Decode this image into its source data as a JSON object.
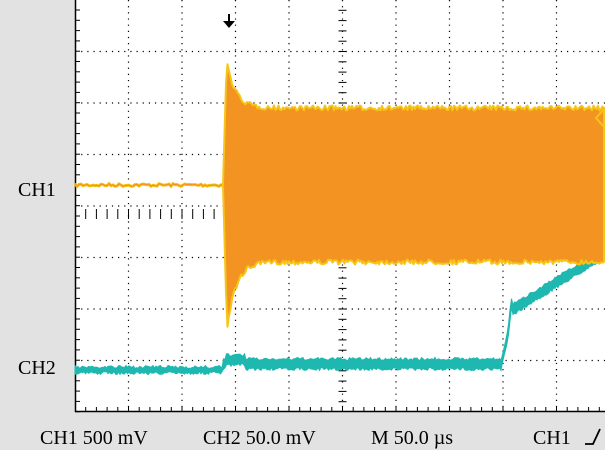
{
  "channels": [
    {
      "label": "CH1",
      "color": "#f39321",
      "edge_color": "#f5c518"
    },
    {
      "label": "CH2",
      "color": "#1fb8b0"
    }
  ],
  "status_bar": {
    "ch1_scale": "CH1 500 mV",
    "ch2_scale": "CH2 50.0 mV",
    "timebase": "M 50.0 µs",
    "trigger": "CH1"
  },
  "trigger_marker_icon": "arrow-down-icon",
  "trigger_slope_icon": "rising-edge-icon",
  "colors": {
    "grid_background": "#ffffff",
    "panel_background": "#e2e2e2",
    "grid_lines": "#000000"
  }
}
